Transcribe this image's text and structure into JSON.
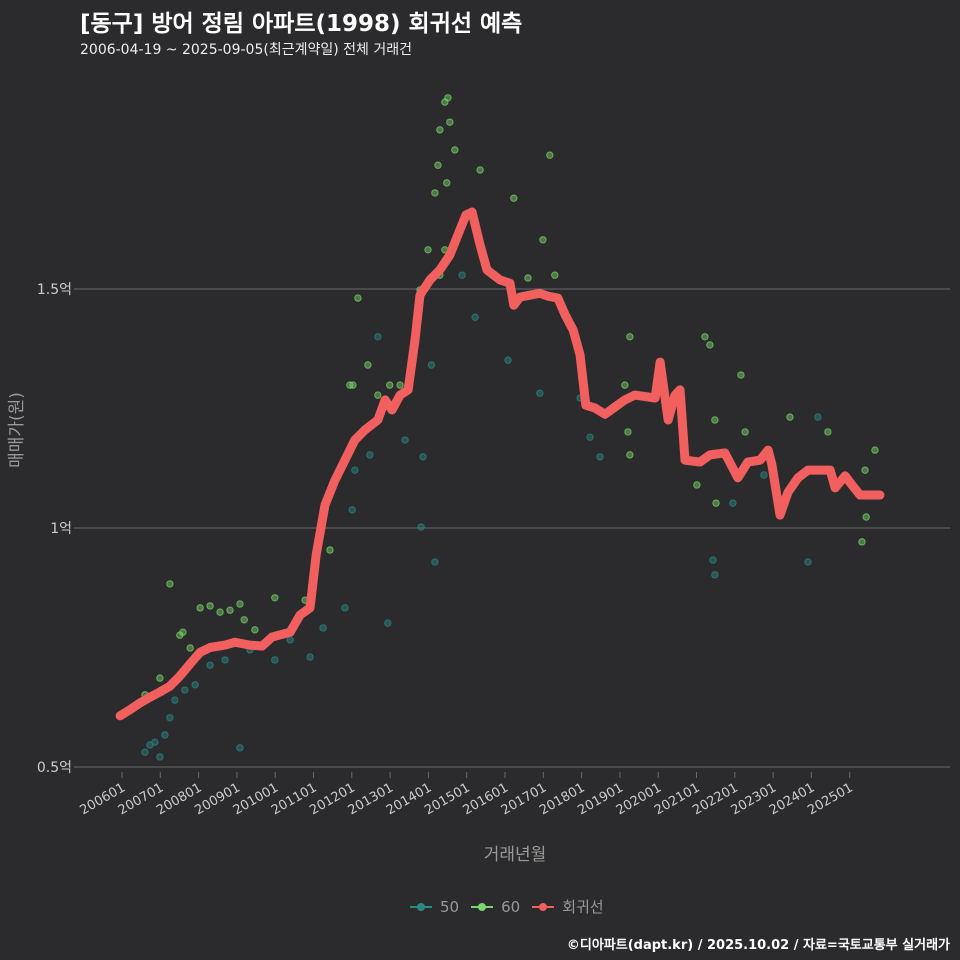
{
  "header": {
    "title": "[동구] 방어 정림 아파트(1998) 회귀선 예측",
    "subtitle": "2006-04-19 ~ 2025-09-05(최근계약일) 전체 거래건"
  },
  "footer": "©디아파트(dapt.kr) / 2025.10.02 / 자료=국토교통부 실거래가",
  "chart_data": {
    "type": "scatter",
    "title": "[동구] 방어 정림 아파트(1998) 회귀선 예측",
    "xlabel": "거래년월",
    "ylabel": "매매가(원)",
    "ylim": [
      0.5,
      1.9
    ],
    "yticks": [
      {
        "value": 0.5,
        "label": "0.5억"
      },
      {
        "value": 1.0,
        "label": "1억"
      },
      {
        "value": 1.5,
        "label": "1.5억"
      }
    ],
    "xticks": [
      "200601",
      "200701",
      "200801",
      "200901",
      "201001",
      "201101",
      "201201",
      "201301",
      "201401",
      "201501",
      "201601",
      "201701",
      "201801",
      "201901",
      "202001",
      "202101",
      "202201",
      "202301",
      "202401",
      "202501"
    ],
    "grid": true,
    "legend_position": "bottom",
    "colors": {
      "50": "#2a8a86",
      "60": "#7ad86a",
      "회귀선": "#f25f5f",
      "grid": "#6a6a6a",
      "background": "#2b2b2d"
    },
    "legend": [
      "50",
      "60",
      "회귀선"
    ],
    "series": [
      {
        "name": "50",
        "points": [
          [
            2006.6,
            0.531
          ],
          [
            2006.73,
            0.546
          ],
          [
            2006.86,
            0.552
          ],
          [
            2006.99,
            0.521
          ],
          [
            2007.12,
            0.567
          ],
          [
            2007.25,
            0.603
          ],
          [
            2007.38,
            0.64
          ],
          [
            2007.64,
            0.661
          ],
          [
            2007.91,
            0.672
          ],
          [
            2008.3,
            0.713
          ],
          [
            2008.69,
            0.724
          ],
          [
            2009.08,
            0.54
          ],
          [
            2009.34,
            0.745
          ],
          [
            2009.99,
            0.724
          ],
          [
            2010.39,
            0.766
          ],
          [
            2010.91,
            0.73
          ],
          [
            2011.25,
            0.791
          ],
          [
            2011.82,
            0.833
          ],
          [
            2012.01,
            1.038
          ],
          [
            2012.08,
            1.121
          ],
          [
            2012.47,
            1.153
          ],
          [
            2012.68,
            1.4
          ],
          [
            2012.94,
            0.801
          ],
          [
            2013.39,
            1.184
          ],
          [
            2013.81,
            1.002
          ],
          [
            2013.86,
            1.149
          ],
          [
            2014.17,
            0.929
          ],
          [
            2014.08,
            1.341
          ],
          [
            2014.88,
            1.529
          ],
          [
            2015.22,
            1.441
          ],
          [
            2016.08,
            1.351
          ],
          [
            2016.91,
            1.282
          ],
          [
            2017.96,
            1.272
          ],
          [
            2018.22,
            1.19
          ],
          [
            2018.48,
            1.149
          ],
          [
            2021.43,
            0.933
          ],
          [
            2021.48,
            0.902
          ],
          [
            2021.95,
            1.052
          ],
          [
            2022.76,
            1.111
          ],
          [
            2023.91,
            0.929
          ],
          [
            2024.17,
            1.232
          ]
        ]
      },
      {
        "name": "60",
        "points": [
          [
            2007.25,
            0.883
          ],
          [
            2006.6,
            0.651
          ],
          [
            2006.99,
            0.686
          ],
          [
            2007.51,
            0.776
          ],
          [
            2007.59,
            0.782
          ],
          [
            2007.78,
            0.749
          ],
          [
            2008.04,
            0.833
          ],
          [
            2008.3,
            0.837
          ],
          [
            2008.56,
            0.824
          ],
          [
            2008.82,
            0.828
          ],
          [
            2009.08,
            0.841
          ],
          [
            2009.19,
            0.808
          ],
          [
            2009.47,
            0.787
          ],
          [
            2009.99,
            0.854
          ],
          [
            2010.78,
            0.849
          ],
          [
            2011.43,
            0.954
          ],
          [
            2011.95,
            1.299
          ],
          [
            2012.03,
            1.299
          ],
          [
            2012.16,
            1.481
          ],
          [
            2012.42,
            1.341
          ],
          [
            2012.68,
            1.278
          ],
          [
            2012.99,
            1.299
          ],
          [
            2013.26,
            1.299
          ],
          [
            2013.78,
            1.498
          ],
          [
            2013.99,
            1.582
          ],
          [
            2014.17,
            1.701
          ],
          [
            2014.25,
            1.759
          ],
          [
            2014.3,
            1.833
          ],
          [
            2014.43,
            1.891
          ],
          [
            2014.51,
            1.9
          ],
          [
            2014.56,
            1.849
          ],
          [
            2014.69,
            1.791
          ],
          [
            2014.48,
            1.722
          ],
          [
            2014.43,
            1.582
          ],
          [
            2014.3,
            1.529
          ],
          [
            2015.35,
            1.749
          ],
          [
            2016.23,
            1.69
          ],
          [
            2016.6,
            1.523
          ],
          [
            2016.99,
            1.603
          ],
          [
            2017.17,
            1.78
          ],
          [
            2017.3,
            1.529
          ],
          [
            2019.26,
            1.4
          ],
          [
            2019.21,
            1.201
          ],
          [
            2019.26,
            1.153
          ],
          [
            2019.13,
            1.299
          ],
          [
            2021.22,
            1.4
          ],
          [
            2021.35,
            1.383
          ],
          [
            2021.48,
            1.226
          ],
          [
            2021.51,
            1.052
          ],
          [
            2022.16,
            1.32
          ],
          [
            2022.27,
            1.201
          ],
          [
            2023.44,
            1.232
          ],
          [
            2024.43,
            1.201
          ],
          [
            2025.4,
            1.121
          ],
          [
            2025.66,
            1.163
          ],
          [
            2025.43,
            1.023
          ],
          [
            2025.32,
            0.971
          ],
          [
            2021.01,
            1.09
          ]
        ]
      },
      {
        "name": "회귀선",
        "line": [
          [
            2005.95,
            0.607
          ],
          [
            2006.21,
            0.62
          ],
          [
            2006.47,
            0.634
          ],
          [
            2006.73,
            0.646
          ],
          [
            2006.99,
            0.657
          ],
          [
            2007.25,
            0.669
          ],
          [
            2007.51,
            0.69
          ],
          [
            2007.78,
            0.716
          ],
          [
            2008.04,
            0.74
          ],
          [
            2008.3,
            0.75
          ],
          [
            2008.69,
            0.755
          ],
          [
            2008.95,
            0.761
          ],
          [
            2009.34,
            0.755
          ],
          [
            2009.66,
            0.753
          ],
          [
            2009.92,
            0.772
          ],
          [
            2010.39,
            0.782
          ],
          [
            2010.65,
            0.818
          ],
          [
            2010.91,
            0.833
          ],
          [
            2011.07,
            0.944
          ],
          [
            2011.3,
            1.048
          ],
          [
            2011.56,
            1.1
          ],
          [
            2011.82,
            1.142
          ],
          [
            2012.08,
            1.184
          ],
          [
            2012.34,
            1.205
          ],
          [
            2012.68,
            1.226
          ],
          [
            2012.87,
            1.268
          ],
          [
            2013.05,
            1.247
          ],
          [
            2013.26,
            1.278
          ],
          [
            2013.47,
            1.289
          ],
          [
            2013.65,
            1.393
          ],
          [
            2013.78,
            1.487
          ],
          [
            2014.04,
            1.519
          ],
          [
            2014.3,
            1.54
          ],
          [
            2014.56,
            1.571
          ],
          [
            2014.77,
            1.613
          ],
          [
            2014.98,
            1.655
          ],
          [
            2015.14,
            1.661
          ],
          [
            2015.35,
            1.592
          ],
          [
            2015.53,
            1.54
          ],
          [
            2015.87,
            1.519
          ],
          [
            2016.13,
            1.512
          ],
          [
            2016.23,
            1.466
          ],
          [
            2016.39,
            1.483
          ],
          [
            2016.65,
            1.487
          ],
          [
            2016.91,
            1.491
          ],
          [
            2017.12,
            1.485
          ],
          [
            2017.38,
            1.481
          ],
          [
            2017.57,
            1.446
          ],
          [
            2017.78,
            1.414
          ],
          [
            2017.96,
            1.362
          ],
          [
            2018.11,
            1.257
          ],
          [
            2018.35,
            1.251
          ],
          [
            2018.61,
            1.238
          ],
          [
            2018.87,
            1.253
          ],
          [
            2019.13,
            1.268
          ],
          [
            2019.39,
            1.278
          ],
          [
            2019.92,
            1.272
          ],
          [
            2020.05,
            1.347
          ],
          [
            2020.26,
            1.226
          ],
          [
            2020.44,
            1.278
          ],
          [
            2020.57,
            1.289
          ],
          [
            2020.7,
            1.142
          ],
          [
            2021.09,
            1.138
          ],
          [
            2021.35,
            1.153
          ],
          [
            2021.74,
            1.157
          ],
          [
            2022.08,
            1.105
          ],
          [
            2022.34,
            1.138
          ],
          [
            2022.66,
            1.142
          ],
          [
            2022.87,
            1.163
          ],
          [
            2022.97,
            1.132
          ],
          [
            2023.18,
            1.027
          ],
          [
            2023.39,
            1.075
          ],
          [
            2023.65,
            1.105
          ],
          [
            2023.91,
            1.121
          ],
          [
            2024.49,
            1.121
          ],
          [
            2024.62,
            1.084
          ],
          [
            2024.88,
            1.109
          ],
          [
            2025.06,
            1.09
          ],
          [
            2025.27,
            1.069
          ],
          [
            2025.79,
            1.069
          ]
        ]
      }
    ]
  }
}
